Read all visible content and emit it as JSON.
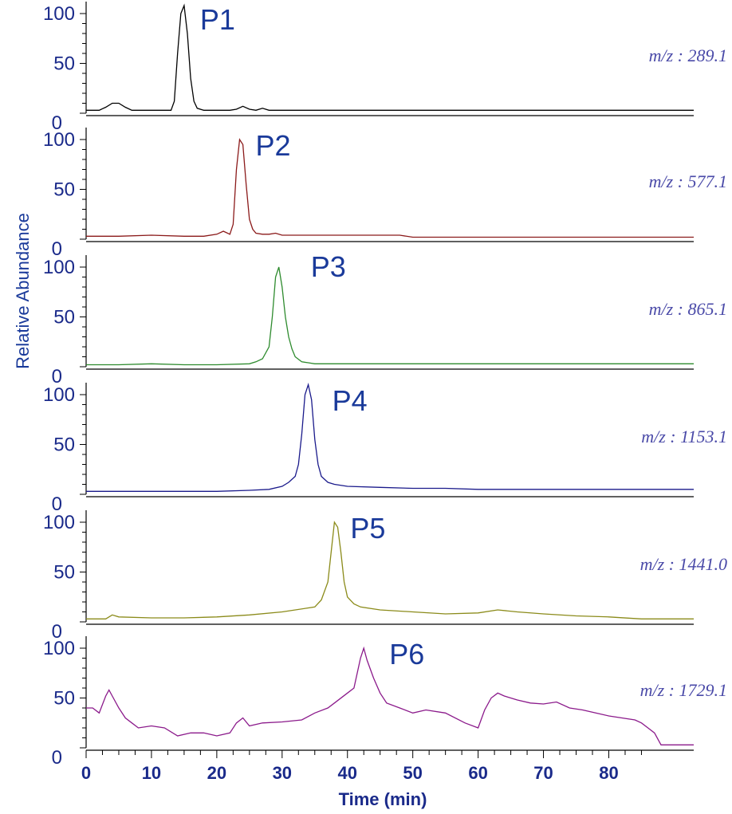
{
  "chart_data": {
    "type": "line",
    "xlabel": "Time (min)",
    "ylabel": "Relative Abundance",
    "xlim": [
      0,
      93
    ],
    "ylim": [
      0,
      100
    ],
    "x_ticks": [
      "0",
      "10",
      "20",
      "30",
      "40",
      "50",
      "60",
      "70",
      "80"
    ],
    "y_ticks": [
      "0",
      "50",
      "100"
    ],
    "series": [
      {
        "name": "P1",
        "mz_label": "m/z : 289.1",
        "color": "#000000",
        "x": [
          0,
          2,
          3,
          4,
          5,
          6,
          7,
          9,
          11,
          13,
          13.5,
          14,
          14.5,
          15,
          15.5,
          16,
          16.5,
          17,
          18,
          19,
          20,
          22,
          23,
          24,
          25,
          26,
          27,
          28,
          30,
          35,
          40,
          45,
          50,
          60,
          70,
          80,
          88,
          93
        ],
        "y": [
          3,
          3,
          6,
          10,
          10,
          6,
          3,
          3,
          3,
          3,
          12,
          60,
          100,
          108,
          80,
          35,
          12,
          5,
          3,
          3,
          3,
          3,
          4,
          7,
          4,
          3,
          5,
          3,
          3,
          3,
          3,
          3,
          3,
          3,
          3,
          3,
          3,
          3
        ]
      },
      {
        "name": "P2",
        "mz_label": "m/z : 577.1",
        "color": "#8b1a1a",
        "x": [
          0,
          5,
          10,
          15,
          18,
          20,
          21,
          22,
          22.5,
          23,
          23.5,
          24,
          24.5,
          25,
          25.5,
          26,
          27,
          28,
          29,
          30,
          35,
          40,
          48,
          50,
          60,
          70,
          80,
          93
        ],
        "y": [
          3,
          3,
          4,
          3,
          3,
          5,
          8,
          5,
          15,
          70,
          100,
          95,
          55,
          20,
          10,
          6,
          5,
          5,
          6,
          4,
          4,
          4,
          4,
          2,
          2,
          2,
          2,
          2
        ]
      },
      {
        "name": "P3",
        "mz_label": "m/z : 865.1",
        "color": "#2e8b2e",
        "x": [
          0,
          5,
          10,
          15,
          20,
          25,
          26,
          27,
          28,
          28.5,
          29,
          29.5,
          30,
          30.5,
          31,
          31.5,
          32,
          33,
          34,
          35,
          40,
          45,
          50,
          55,
          60,
          70,
          80,
          93
        ],
        "y": [
          2,
          2,
          3,
          2,
          2,
          3,
          5,
          8,
          20,
          50,
          90,
          100,
          80,
          50,
          30,
          18,
          10,
          5,
          4,
          3,
          3,
          3,
          3,
          3,
          3,
          3,
          3,
          3
        ]
      },
      {
        "name": "P4",
        "mz_label": "m/z : 1153.1",
        "color": "#1a1a8b",
        "x": [
          0,
          5,
          10,
          15,
          20,
          25,
          28,
          30,
          31,
          32,
          32.5,
          33,
          33.5,
          34,
          34.5,
          35,
          35.5,
          36,
          37,
          38,
          40,
          45,
          50,
          55,
          60,
          70,
          80,
          93
        ],
        "y": [
          3,
          3,
          3,
          3,
          3,
          4,
          5,
          8,
          12,
          18,
          30,
          60,
          100,
          110,
          95,
          55,
          30,
          18,
          12,
          10,
          8,
          7,
          6,
          6,
          5,
          5,
          5,
          5
        ]
      },
      {
        "name": "P5",
        "mz_label": "m/z : 1441.0",
        "color": "#8b8b1a",
        "x": [
          0,
          3,
          4,
          5,
          10,
          15,
          20,
          25,
          30,
          35,
          36,
          37,
          37.5,
          38,
          38.5,
          39,
          39.5,
          40,
          41,
          42,
          45,
          50,
          55,
          60,
          63,
          66,
          70,
          75,
          80,
          85,
          93
        ],
        "y": [
          3,
          3,
          7,
          5,
          4,
          4,
          5,
          7,
          10,
          15,
          22,
          40,
          70,
          100,
          95,
          70,
          40,
          25,
          18,
          15,
          12,
          10,
          8,
          9,
          12,
          10,
          8,
          6,
          5,
          3,
          3
        ]
      },
      {
        "name": "P6",
        "mz_label": "m/z : 1729.1",
        "color": "#8b1a8b",
        "x": [
          0,
          1,
          2,
          3,
          3.5,
          4,
          5,
          6,
          7,
          8,
          10,
          12,
          14,
          16,
          18,
          20,
          22,
          23,
          24,
          25,
          27,
          30,
          33,
          35,
          37,
          38,
          40,
          41,
          42,
          42.5,
          43,
          44,
          45,
          46,
          48,
          50,
          52,
          55,
          58,
          60,
          61,
          62,
          63,
          64,
          66,
          68,
          70,
          72,
          74,
          76,
          78,
          80,
          82,
          84,
          85,
          86,
          87,
          88,
          90,
          93
        ],
        "y": [
          40,
          40,
          35,
          52,
          58,
          52,
          40,
          30,
          25,
          20,
          22,
          20,
          12,
          15,
          15,
          12,
          15,
          25,
          30,
          22,
          25,
          26,
          28,
          35,
          40,
          45,
          55,
          60,
          90,
          100,
          88,
          70,
          55,
          45,
          40,
          35,
          38,
          35,
          25,
          20,
          38,
          50,
          55,
          52,
          48,
          45,
          44,
          46,
          40,
          38,
          35,
          32,
          30,
          28,
          25,
          20,
          15,
          3,
          3,
          3
        ]
      }
    ]
  }
}
